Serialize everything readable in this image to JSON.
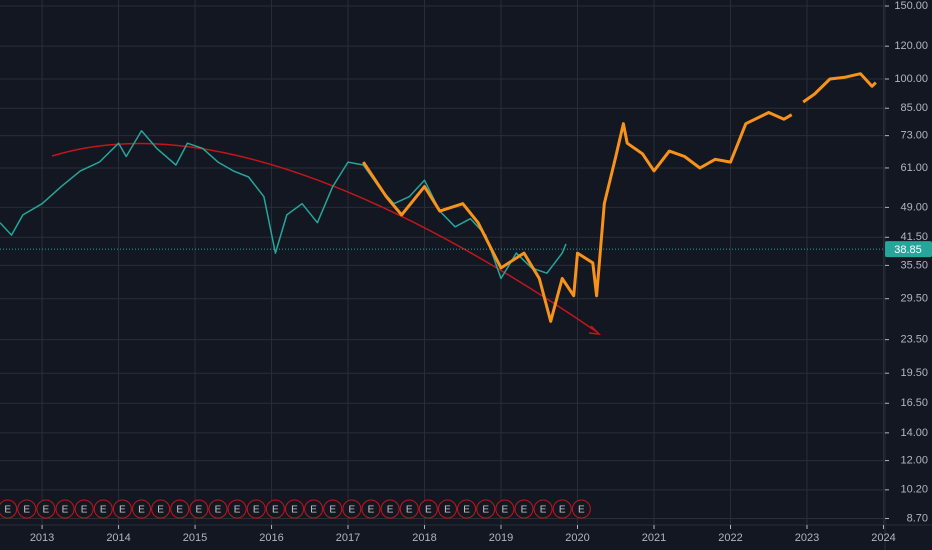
{
  "chart_data": {
    "type": "line",
    "log_scale": true,
    "grid": true,
    "xlim": [
      2012.45,
      2024.02
    ],
    "xticks": [
      2013,
      2014,
      2015,
      2016,
      2017,
      2018,
      2019,
      2020,
      2021,
      2022,
      2023,
      2024
    ],
    "ylim": [
      8.39,
      155.1
    ],
    "yticks": [
      {
        "value": 150,
        "label": "150.00"
      },
      {
        "value": 120,
        "label": "120.00"
      },
      {
        "value": 100,
        "label": "100.00"
      },
      {
        "value": 85,
        "label": "85.00"
      },
      {
        "value": 73,
        "label": "73.00"
      },
      {
        "value": 61,
        "label": "61.00"
      },
      {
        "value": 49,
        "label": "49.00"
      },
      {
        "value": 41.5,
        "label": "41.50"
      },
      {
        "value": 35.5,
        "label": "35.50"
      },
      {
        "value": 29.5,
        "label": "29.50"
      },
      {
        "value": 23.5,
        "label": "23.50"
      },
      {
        "value": 19.5,
        "label": "19.50"
      },
      {
        "value": 16.5,
        "label": "16.50"
      },
      {
        "value": 14,
        "label": "14.00"
      },
      {
        "value": 12,
        "label": "12.00"
      },
      {
        "value": 10.2,
        "label": "10.20"
      },
      {
        "value": 8.7,
        "label": "8.70"
      }
    ],
    "last_price": 38.85,
    "last_price_color": "#26a69a",
    "series": [
      {
        "color": "#26a69a",
        "x": [
          2012.45,
          2012.6,
          2012.75,
          2013.0,
          2013.25,
          2013.5,
          2013.75,
          2014.0,
          2014.1,
          2014.3,
          2014.5,
          2014.75,
          2014.9,
          2015.1,
          2015.3,
          2015.5,
          2015.7,
          2015.9,
          2016.05,
          2016.2,
          2016.4,
          2016.6,
          2016.8,
          2017.0,
          2017.2,
          2017.4,
          2017.6,
          2017.8,
          2018.0,
          2018.2,
          2018.4,
          2018.6,
          2018.8,
          2019.0,
          2019.2,
          2019.4,
          2019.6,
          2019.8,
          2019.85
        ],
        "values": [
          45,
          42,
          47,
          50,
          55,
          60,
          63,
          70,
          65,
          75,
          68,
          62,
          70,
          68,
          63,
          60,
          58,
          52,
          38,
          47,
          50,
          45,
          55,
          63,
          62,
          55,
          50,
          52,
          57,
          48,
          44,
          46,
          42,
          33,
          38,
          35,
          34,
          38,
          40
        ]
      },
      {
        "color": "#f7931a",
        "x": [
          2017.2,
          2017.5,
          2017.7,
          2018.0,
          2018.2,
          2018.5,
          2018.7,
          2018.9,
          2019.0,
          2019.3,
          2019.5,
          2019.65,
          2019.8,
          2019.95,
          2020.0,
          2020.2,
          2020.25,
          2020.35,
          2020.5,
          2020.6,
          2020.65,
          2020.85,
          2021.0,
          2021.2,
          2021.4,
          2021.6,
          2021.8,
          2022.0,
          2022.1,
          2022.2,
          2022.5,
          2022.7,
          2022.8,
          2022.88,
          2022.95,
          2023.1,
          2023.3,
          2023.5,
          2023.7,
          2023.85,
          2023.9
        ],
        "values": [
          63,
          52,
          47,
          55,
          48,
          50,
          45,
          38,
          35,
          38,
          33,
          26,
          33,
          30,
          38,
          36,
          30,
          50,
          65,
          78,
          70,
          66,
          60,
          67,
          65,
          61,
          64,
          63,
          70,
          78,
          83,
          80,
          82,
          null,
          88,
          92,
          100,
          101,
          103,
          96,
          98
        ]
      }
    ],
    "earnings": {
      "label": "E",
      "x": [
        2012.55,
        2012.8,
        2013.05,
        2013.3,
        2013.55,
        2013.8,
        2014.05,
        2014.3,
        2014.55,
        2014.8,
        2015.05,
        2015.3,
        2015.55,
        2015.8,
        2016.05,
        2016.3,
        2016.55,
        2016.8,
        2017.05,
        2017.3,
        2017.55,
        2017.8,
        2018.05,
        2018.3,
        2018.55,
        2018.8,
        2019.05,
        2019.3,
        2019.55,
        2019.8,
        2020.05
      ]
    }
  }
}
